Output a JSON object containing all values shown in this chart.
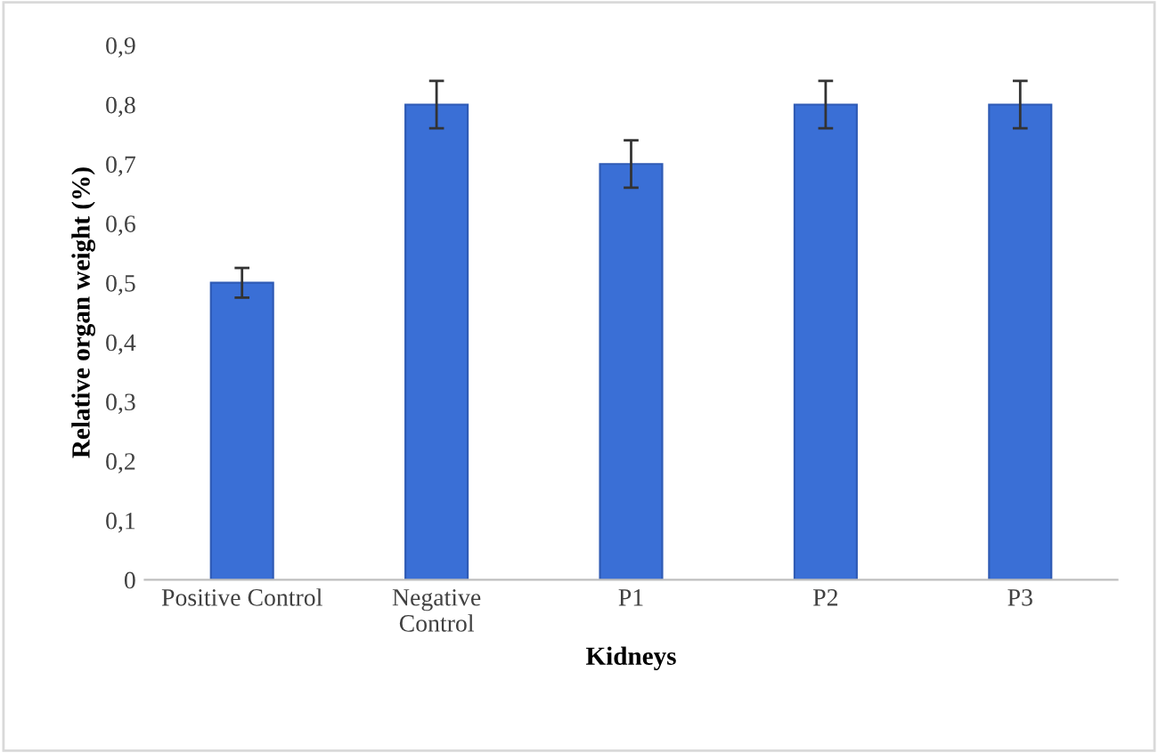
{
  "chart_data": {
    "type": "bar",
    "xlabel": "Kidneys",
    "ylabel": "Relative organ weight (%)",
    "categories": [
      "Positive Control",
      "Negative\nControl",
      "P1",
      "P2",
      "P3"
    ],
    "values": [
      0.5,
      0.8,
      0.7,
      0.8,
      0.8
    ],
    "errors": [
      0.025,
      0.04,
      0.04,
      0.04,
      0.04
    ],
    "color": "#3a6fd6",
    "ylim": [
      0,
      0.9
    ],
    "yticks": [
      {
        "value": 0,
        "label": "0"
      },
      {
        "value": 0.1,
        "label": "0,1"
      },
      {
        "value": 0.2,
        "label": "0,2"
      },
      {
        "value": 0.3,
        "label": "0,3"
      },
      {
        "value": 0.4,
        "label": "0,4"
      },
      {
        "value": 0.5,
        "label": "0,5"
      },
      {
        "value": 0.6,
        "label": "0,6"
      },
      {
        "value": 0.7,
        "label": "0,7"
      },
      {
        "value": 0.8,
        "label": "0,8"
      },
      {
        "value": 0.9,
        "label": "0,9"
      }
    ],
    "grid": false,
    "legend": false
  }
}
